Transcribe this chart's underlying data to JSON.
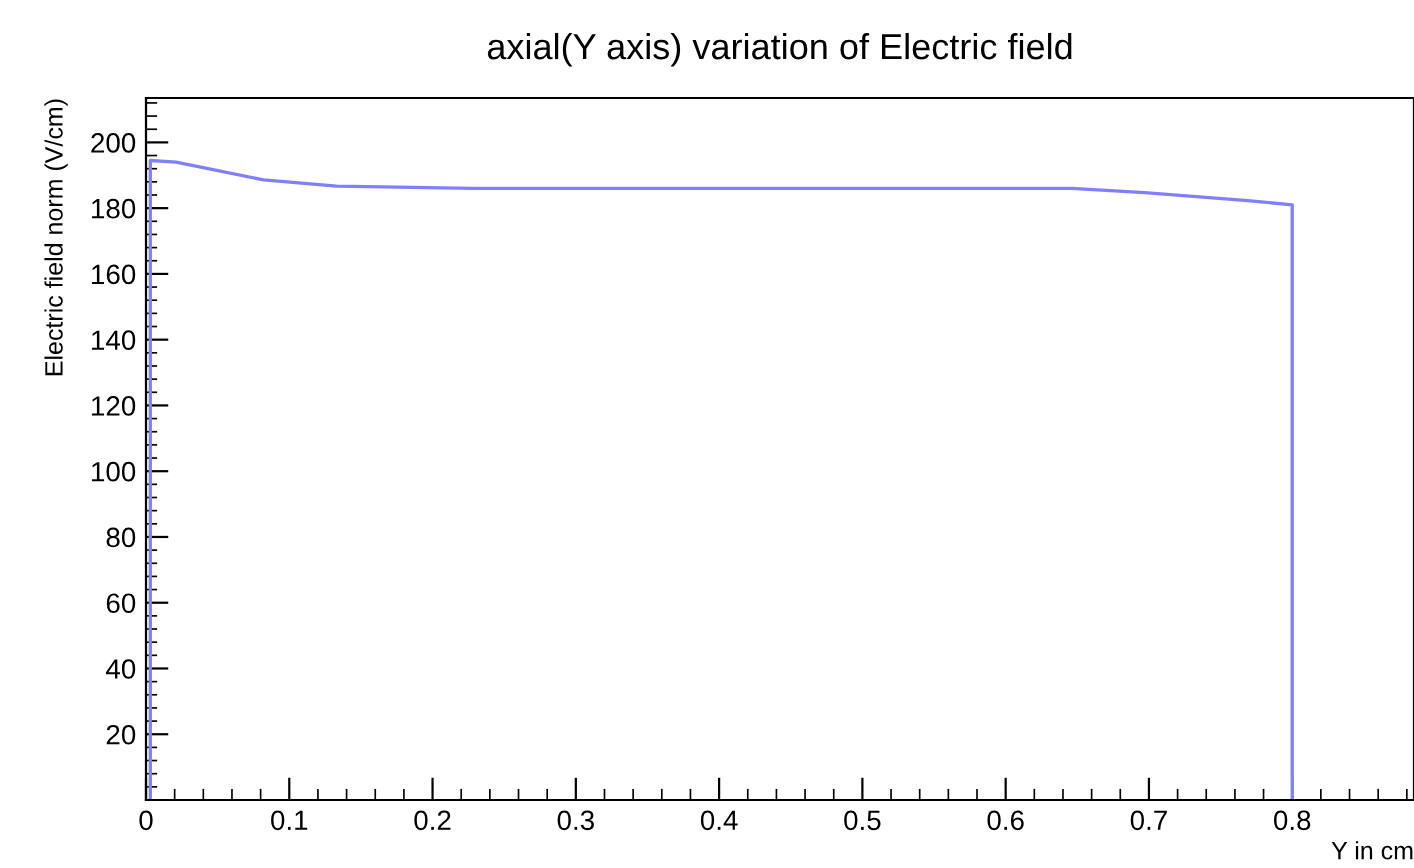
{
  "chart_data": {
    "type": "line",
    "title": "axial(Y axis) variation of Electric field",
    "xlabel": "Y in cm",
    "ylabel": "Electric field norm (V/cm)",
    "series": [
      {
        "color": "#8080ff",
        "x": [
          0.003,
          0.003,
          0.021,
          0.082,
          0.133,
          0.228,
          0.646,
          0.697,
          0.769,
          0.8,
          0.8
        ],
        "values": [
          0,
          194.5,
          194,
          188.6,
          186.7,
          186,
          186,
          184.7,
          182.3,
          181,
          0
        ]
      }
    ],
    "xlim": [
      0,
      0.885
    ],
    "ylim": [
      0,
      213.5
    ],
    "xticks": [
      0,
      0.1,
      0.2,
      0.3,
      0.4,
      0.5,
      0.6,
      0.7,
      0.8
    ],
    "yticks": [
      20,
      40,
      60,
      80,
      100,
      120,
      140,
      160,
      180,
      200
    ],
    "grid": false,
    "legend": false,
    "marker": "none",
    "line_style": "solid"
  }
}
